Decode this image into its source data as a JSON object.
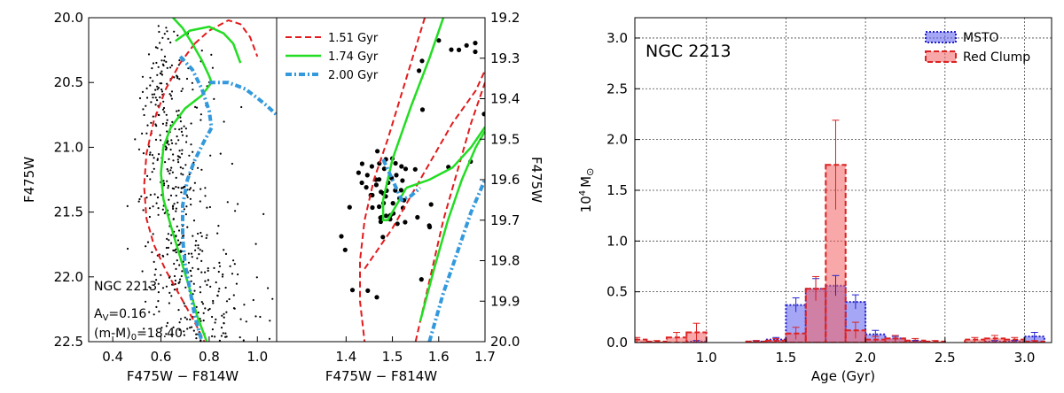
{
  "colors": {
    "red": "#e31a1c",
    "green": "#22dd22",
    "blue": "#3399dd",
    "msto": "#3333cc",
    "clump": "#e34040"
  },
  "chart_data": [
    {
      "type": "scatter",
      "title": "",
      "xlabel": "F475W − F814W",
      "ylabel": "F475W",
      "xlim": [
        0.3,
        1.08
      ],
      "ylim": [
        22.5,
        20.0
      ],
      "y_inverted": true,
      "xticks": [
        "0.4",
        "0.6",
        "0.8",
        "1.0"
      ],
      "yticks": [
        "20.0",
        "20.5",
        "21.0",
        "21.5",
        "22.0",
        "22.5"
      ],
      "annotations": {
        "cluster": "NGC 2213",
        "av": "A",
        "av_sub": "V",
        "av_val": "=0.16",
        "dm": "(m-M)",
        "dm_sub": "0",
        "dm_val": "=18.40"
      },
      "isochrones": [
        {
          "age": "1.51 Gyr",
          "style": "dashed",
          "color": "red",
          "x": [
            0.74,
            0.68,
            0.62,
            0.57,
            0.54,
            0.53,
            0.54,
            0.57,
            0.62,
            0.68,
            0.74,
            0.78
          ],
          "y": [
            20.2,
            20.35,
            20.55,
            20.8,
            21.05,
            21.3,
            21.55,
            21.75,
            21.95,
            22.15,
            22.35,
            22.5
          ]
        },
        {
          "age": "1.51 Gyr",
          "style": "dashed",
          "color": "red",
          "x": [
            0.74,
            0.8,
            0.88,
            0.93,
            0.97,
            1.0
          ],
          "y": [
            20.2,
            20.1,
            20.02,
            20.05,
            20.15,
            20.3
          ]
        },
        {
          "age": "1.74 Gyr",
          "style": "solid",
          "color": "green",
          "x": [
            0.65,
            0.69,
            0.73,
            0.77,
            0.8,
            0.81,
            0.77,
            0.7,
            0.64,
            0.61,
            0.6,
            0.61,
            0.64,
            0.68,
            0.72,
            0.75,
            0.79
          ],
          "y": [
            20.0,
            20.08,
            20.2,
            20.33,
            20.45,
            20.5,
            20.6,
            20.7,
            20.85,
            21.0,
            21.2,
            21.4,
            21.6,
            21.85,
            22.1,
            22.3,
            22.5
          ]
        },
        {
          "age": "1.74 Gyr",
          "style": "solid",
          "color": "green",
          "x": [
            0.66,
            0.72,
            0.8,
            0.86,
            0.9,
            0.93
          ],
          "y": [
            20.18,
            20.1,
            20.07,
            20.12,
            20.2,
            20.35
          ]
        },
        {
          "age": "2.00 Gyr",
          "style": "dashdot",
          "color": "blue",
          "x": [
            0.68,
            0.73,
            0.77,
            0.8,
            0.81,
            0.78,
            0.74,
            0.71,
            0.69,
            0.69,
            0.7,
            0.72,
            0.74,
            0.77
          ],
          "y": [
            20.3,
            20.4,
            20.55,
            20.72,
            20.85,
            20.95,
            21.1,
            21.25,
            21.45,
            21.7,
            21.9,
            22.1,
            22.3,
            22.5
          ]
        },
        {
          "age": "2.00 Gyr",
          "style": "dashdot",
          "color": "blue",
          "x": [
            0.8,
            0.88,
            0.95,
            1.0,
            1.04,
            1.08
          ],
          "y": [
            20.5,
            20.5,
            20.55,
            20.62,
            20.68,
            20.75
          ]
        }
      ]
    },
    {
      "type": "scatter",
      "title": "",
      "xlabel": "F475W − F814W",
      "ylabel": "F475W",
      "xlim": [
        1.25,
        1.7
      ],
      "ylim": [
        20.0,
        19.2
      ],
      "y_inverted": true,
      "y_axis_side": "right",
      "xticks": [
        "1.4",
        "1.5",
        "1.6",
        "1.7"
      ],
      "yticks": [
        "19.2",
        "19.3",
        "19.4",
        "19.5",
        "19.6",
        "19.7",
        "19.8",
        "19.9",
        "20.0"
      ],
      "legend": {
        "placement": "top-left",
        "entries": [
          "1.51 Gyr",
          "1.74 Gyr",
          "2.00 Gyr"
        ]
      },
      "isochrones": [
        {
          "age": "1.51 Gyr",
          "style": "dashed",
          "color": "red",
          "x": [
            1.57,
            1.53,
            1.49,
            1.46,
            1.44,
            1.43,
            1.43,
            1.44
          ],
          "y": [
            19.2,
            19.35,
            19.5,
            19.6,
            19.7,
            19.8,
            19.9,
            20.0
          ]
        },
        {
          "age": "1.51 Gyr",
          "style": "dashed",
          "color": "red",
          "x": [
            1.44,
            1.5,
            1.57,
            1.63,
            1.68,
            1.7
          ],
          "y": [
            19.82,
            19.72,
            19.58,
            19.46,
            19.38,
            19.33
          ]
        },
        {
          "age": "1.51 Gyr",
          "style": "dashed",
          "color": "red",
          "x": [
            1.55,
            1.58,
            1.61,
            1.64,
            1.67,
            1.7
          ],
          "y": [
            20.0,
            19.85,
            19.7,
            19.58,
            19.46,
            19.36
          ]
        },
        {
          "age": "1.74 Gyr",
          "style": "solid",
          "color": "green",
          "x": [
            1.61,
            1.58,
            1.54,
            1.5,
            1.48,
            1.48,
            1.49,
            1.51,
            1.53
          ],
          "y": [
            19.2,
            19.3,
            19.42,
            19.55,
            19.65,
            19.7,
            19.7,
            19.66,
            19.62
          ]
        },
        {
          "age": "1.74 Gyr",
          "style": "solid",
          "color": "green",
          "x": [
            1.53,
            1.58,
            1.63,
            1.67,
            1.7
          ],
          "y": [
            19.62,
            19.6,
            19.57,
            19.52,
            19.47
          ]
        },
        {
          "age": "1.74 Gyr",
          "style": "solid",
          "color": "green",
          "x": [
            1.56,
            1.59,
            1.62,
            1.65,
            1.68,
            1.7
          ],
          "y": [
            19.95,
            19.82,
            19.7,
            19.6,
            19.52,
            19.48
          ]
        },
        {
          "age": "2.00 Gyr",
          "style": "dashdot",
          "color": "blue",
          "x": [
            1.48,
            1.5,
            1.52,
            1.54,
            1.56
          ],
          "y": [
            19.55,
            19.6,
            19.65,
            19.64,
            19.62
          ]
        },
        {
          "age": "2.00 Gyr",
          "style": "dashdot",
          "color": "blue",
          "x": [
            1.58,
            1.61,
            1.64,
            1.67,
            1.7
          ],
          "y": [
            20.0,
            19.88,
            19.78,
            19.68,
            19.6
          ]
        }
      ]
    },
    {
      "type": "bar",
      "title": "",
      "xlabel": "Age (Gyr)",
      "ylabel": "10⁴ M⊙",
      "ylabel_main": "10",
      "ylabel_sup": "4",
      "ylabel_unit": "M",
      "ylabel_unit_sub": "⊙",
      "xlim": [
        0.55,
        3.17
      ],
      "ylim": [
        0,
        3.2
      ],
      "grid": true,
      "xticks": [
        "1.0",
        "1.5",
        "2.0",
        "2.5",
        "3.0"
      ],
      "yticks": [
        "0.0",
        "0.5",
        "1.0",
        "1.5",
        "2.0",
        "2.5",
        "3.0"
      ],
      "annotation": "NGC 2213",
      "legend": {
        "placement": "top-right",
        "entries": [
          "MSTO",
          "Red Clump"
        ]
      },
      "bin_width": 0.125,
      "series": [
        {
          "name": "MSTO",
          "style": "dotted",
          "bins": [
            0.5625,
            0.6875,
            0.8125,
            0.9375,
            1.0625,
            1.1875,
            1.3125,
            1.4375,
            1.5625,
            1.6875,
            1.8125,
            1.9375,
            2.0625,
            2.1875,
            2.3125,
            2.4375,
            2.5625,
            2.6875,
            2.8125,
            2.9375,
            3.0625
          ],
          "values": [
            0.0,
            0.0,
            0.0,
            0.01,
            0.0,
            0.0,
            0.01,
            0.03,
            0.37,
            0.53,
            0.56,
            0.4,
            0.08,
            0.04,
            0.01,
            0.0,
            0.0,
            0.0,
            0.01,
            0.01,
            0.06
          ],
          "errors": [
            0,
            0,
            0,
            0.01,
            0,
            0,
            0.01,
            0.02,
            0.07,
            0.1,
            0.1,
            0.07,
            0.04,
            0.02,
            0.01,
            0,
            0,
            0,
            0.01,
            0.01,
            0.04
          ]
        },
        {
          "name": "Red Clump",
          "style": "dashed",
          "bins": [
            0.5625,
            0.6875,
            0.8125,
            0.9375,
            1.0625,
            1.1875,
            1.3125,
            1.4375,
            1.5625,
            1.6875,
            1.8125,
            1.9375,
            2.0625,
            2.1875,
            2.3125,
            2.4375,
            2.5625,
            2.6875,
            2.8125,
            2.9375,
            3.0625
          ],
          "values": [
            0.03,
            0.01,
            0.05,
            0.1,
            0.0,
            0.0,
            0.01,
            0.02,
            0.09,
            0.53,
            1.75,
            0.12,
            0.03,
            0.04,
            0.02,
            0.01,
            0.0,
            0.03,
            0.04,
            0.03,
            0.01
          ],
          "errors": [
            0.02,
            0.01,
            0.05,
            0.09,
            0,
            0,
            0.01,
            0.02,
            0.06,
            0.12,
            0.44,
            0.08,
            0.03,
            0.03,
            0.02,
            0.01,
            0,
            0.02,
            0.03,
            0.02,
            0.01
          ]
        }
      ]
    }
  ]
}
